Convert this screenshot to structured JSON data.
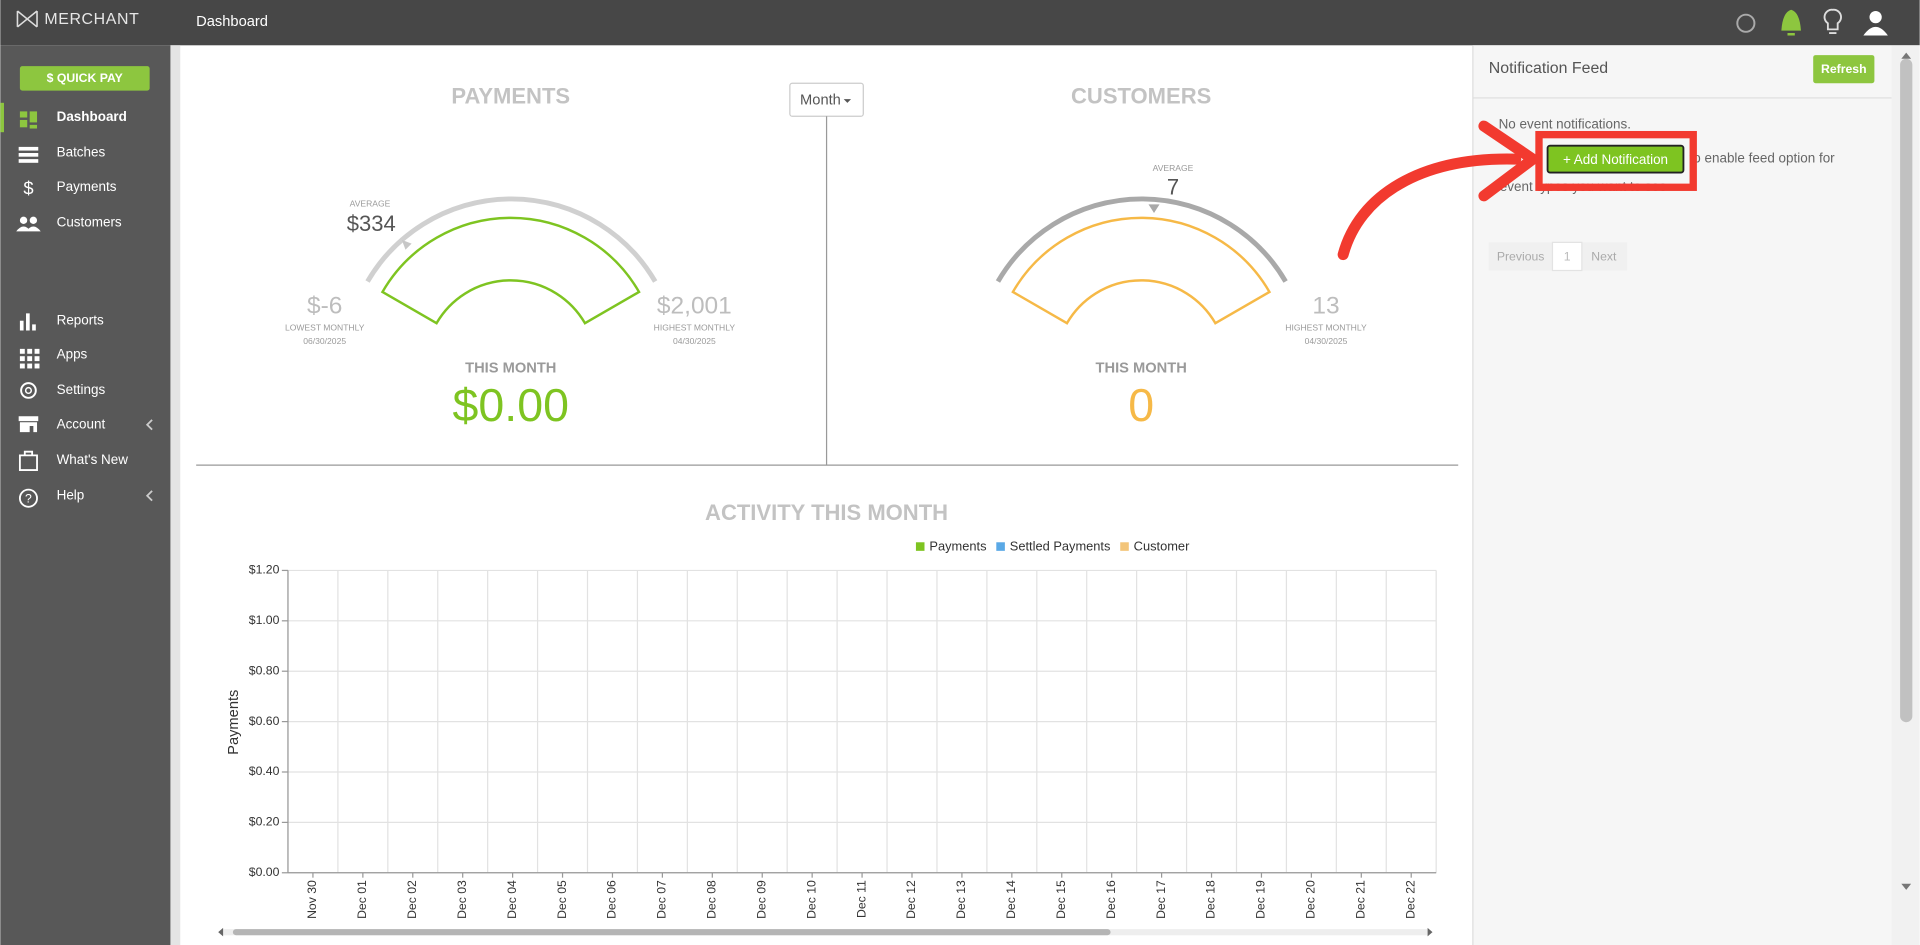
{
  "header": {
    "logo": "MERCHANT",
    "page_title": "Dashboard"
  },
  "sidebar": {
    "quick_pay": "$ QUICK PAY",
    "menu": [
      "Dashboard",
      "Batches",
      "Payments",
      "Customers",
      "Reports",
      "Apps",
      "Settings",
      "Account",
      "What's New",
      "Help"
    ]
  },
  "payments_gauge": {
    "title": "PAYMENTS",
    "average_label": "AVERAGE",
    "average": "$334",
    "lowest": "$-6",
    "lowest_label": "LOWEST MONTHLY",
    "lowest_date": "06/30/2025",
    "highest": "$2,001",
    "highest_label": "HIGHEST MONTHLY",
    "highest_date": "04/30/2025",
    "this_month_label": "THIS MONTH",
    "this_month": "$0.00"
  },
  "period_dropdown": "Month",
  "customers_gauge": {
    "title": "CUSTOMERS",
    "average_label": "AVERAGE",
    "average": "7",
    "highest": "13",
    "highest_label": "HIGHEST MONTHLY",
    "highest_date": "04/30/2025",
    "this_month_label": "THIS MONTH",
    "this_month": "0"
  },
  "chart_data": {
    "type": "line",
    "title": "ACTIVITY THIS MONTH",
    "y_label": "Payments",
    "categories": [
      "Nov 30",
      "Dec 01",
      "Dec 02",
      "Dec 03",
      "Dec 04",
      "Dec 05",
      "Dec 06",
      "Dec 07",
      "Dec 08",
      "Dec 09",
      "Dec 10",
      "Dec 11",
      "Dec 12",
      "Dec 13",
      "Dec 14",
      "Dec 15",
      "Dec 16",
      "Dec 17",
      "Dec 18",
      "Dec 19",
      "Dec 20",
      "Dec 21",
      "Dec 22"
    ],
    "series": [
      {
        "name": "Payments",
        "color": "#7ec421"
      },
      {
        "name": "Settled Payments",
        "color": "#5aa9e6"
      },
      {
        "name": "Customer",
        "color": "#f3c57a"
      }
    ],
    "ylim": [
      0,
      1.2
    ],
    "yticks": [
      {
        "value": 0,
        "label": "$0.00"
      },
      {
        "value": 0.2,
        "label": "$0.20"
      },
      {
        "value": 0.4,
        "label": "$0.40"
      },
      {
        "value": 0.6,
        "label": "$0.60"
      },
      {
        "value": 0.8,
        "label": "$0.80"
      },
      {
        "value": 1.0,
        "label": "$1.00"
      },
      {
        "value": 1.2,
        "label": "$1.20"
      }
    ],
    "grid": true
  },
  "notification_feed": {
    "title": "Notification Feed",
    "refresh": "Refresh",
    "empty": "No event notifications.",
    "add_button": "+ Add Notification",
    "hint_line1": "to enable feed option for",
    "hint_line2": "event types you want to see",
    "pagination": {
      "previous": "Previous",
      "page": "1",
      "next": "Next"
    }
  }
}
